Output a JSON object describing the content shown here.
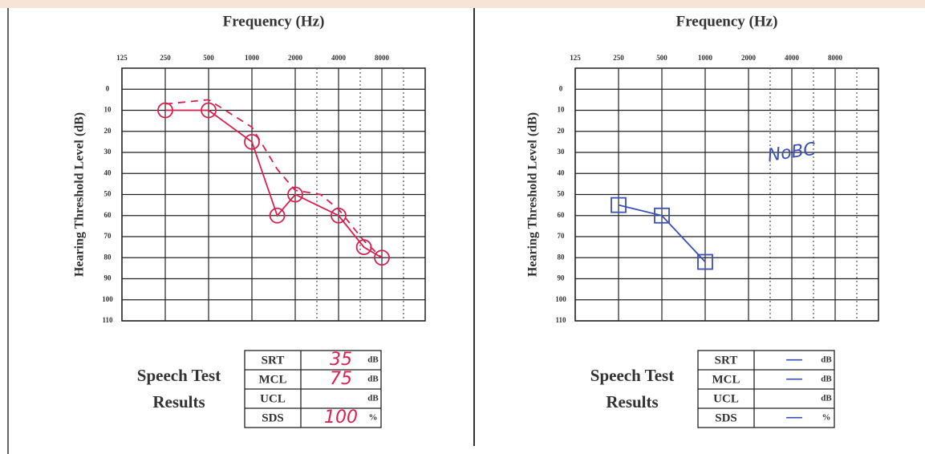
{
  "chart_data": [
    {
      "type": "line",
      "title": "Frequency (Hz)",
      "y_label": "Hearing Threshold Level (dB)",
      "x_scale": "log",
      "xlim": [
        125,
        16000
      ],
      "xticks": [
        125,
        250,
        500,
        1000,
        2000,
        4000,
        8000
      ],
      "ylim": [
        -10,
        110
      ],
      "y_inverted": true,
      "yticks": [
        0,
        10,
        20,
        30,
        40,
        50,
        60,
        70,
        80,
        90,
        100,
        110
      ],
      "grid": true,
      "series": [
        {
          "color": "#d9214f",
          "marker": "circle",
          "dash": false,
          "x": [
            250,
            500,
            1000,
            1500,
            2000,
            4000,
            6000,
            8000
          ],
          "values": [
            10,
            10,
            25,
            60,
            50,
            60,
            75,
            80
          ]
        },
        {
          "color": "#d9214f",
          "marker": "none",
          "dash": true,
          "x": [
            250,
            500,
            1000,
            1500,
            2000,
            3000,
            4000,
            6000,
            8000
          ],
          "values": [
            7,
            5,
            18,
            38,
            48,
            50,
            57,
            72,
            80
          ]
        }
      ],
      "speech_test": {
        "title_lines": [
          "Speech Test",
          "Results"
        ],
        "rows": [
          {
            "label": "SRT",
            "value": "35",
            "unit": "dB"
          },
          {
            "label": "MCL",
            "value": "75",
            "unit": "dB"
          },
          {
            "label": "UCL",
            "value": "",
            "unit": "dB"
          },
          {
            "label": "SDS",
            "value": "100",
            "unit": "%"
          }
        ]
      }
    },
    {
      "type": "line",
      "title": "Frequency (Hz)",
      "y_label": "Hearing Threshold Level (dB)",
      "x_scale": "log",
      "xlim": [
        125,
        16000
      ],
      "xticks": [
        125,
        250,
        500,
        1000,
        2000,
        4000,
        8000
      ],
      "ylim": [
        -10,
        110
      ],
      "y_inverted": true,
      "yticks": [
        0,
        10,
        20,
        30,
        40,
        50,
        60,
        70,
        80,
        90,
        100,
        110
      ],
      "grid": true,
      "annotation": "NoBC",
      "series": [
        {
          "color": "#3a4fb8",
          "marker": "square",
          "dash": false,
          "x": [
            250,
            500,
            1000
          ],
          "values": [
            55,
            60,
            82
          ]
        }
      ],
      "speech_test": {
        "title_lines": [
          "Speech Test",
          "Results"
        ],
        "rows": [
          {
            "label": "SRT",
            "value": "—",
            "unit": "dB"
          },
          {
            "label": "MCL",
            "value": "—",
            "unit": "dB"
          },
          {
            "label": "UCL",
            "value": "",
            "unit": "dB"
          },
          {
            "label": "SDS",
            "value": "—",
            "unit": "%"
          }
        ]
      }
    }
  ]
}
